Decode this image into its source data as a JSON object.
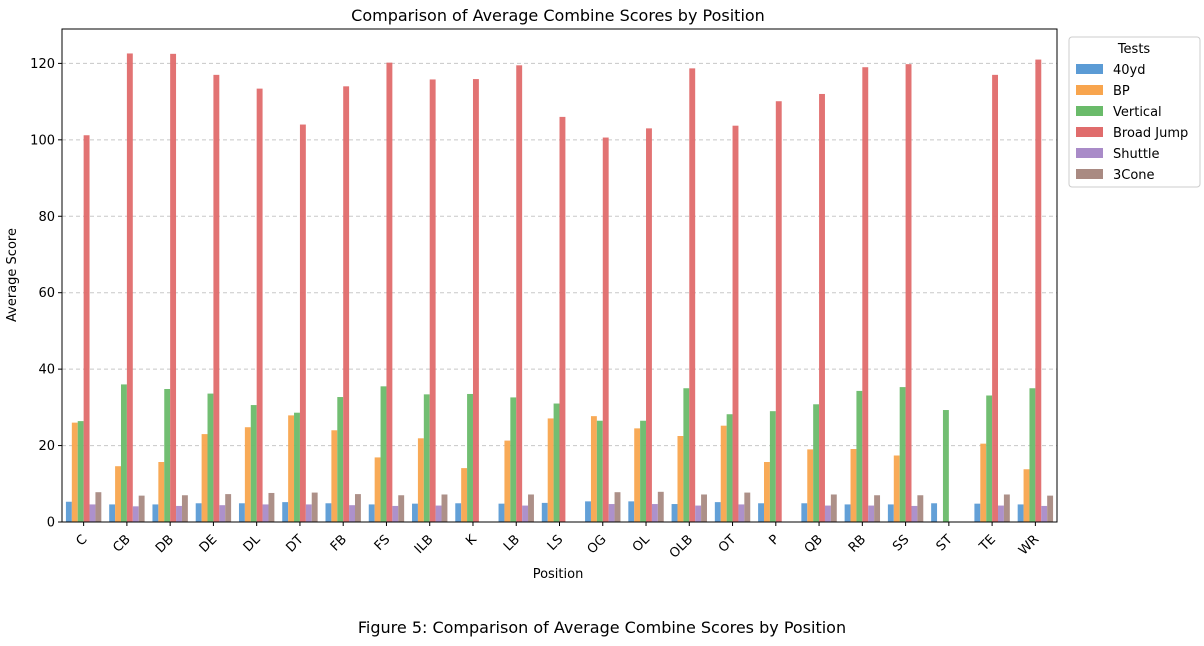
{
  "chart_data": {
    "type": "bar",
    "title": "Comparison of Average Combine Scores by Position",
    "xlabel": "Position",
    "ylabel": "Average Score",
    "caption": "Figure 5: Comparison of Average Combine Scores by Position",
    "ylim": [
      0,
      129
    ],
    "yticks": [
      0,
      20,
      40,
      60,
      80,
      100,
      120
    ],
    "grid": "y-dashed",
    "legend_title": "Tests",
    "legend_position": "outside-top-right",
    "categories": [
      "C",
      "CB",
      "DB",
      "DE",
      "DL",
      "DT",
      "FB",
      "FS",
      "ILB",
      "K",
      "LB",
      "LS",
      "OG",
      "OL",
      "OLB",
      "OT",
      "P",
      "QB",
      "RB",
      "SS",
      "ST",
      "TE",
      "WR"
    ],
    "series": [
      {
        "name": "40yd",
        "color": "#5b9bd5",
        "values": [
          5.3,
          4.6,
          4.6,
          4.9,
          4.9,
          5.2,
          4.9,
          4.6,
          4.8,
          4.9,
          4.8,
          5.0,
          5.4,
          5.4,
          4.7,
          5.2,
          4.9,
          4.9,
          4.6,
          4.6,
          4.9,
          4.8,
          4.6
        ]
      },
      {
        "name": "BP",
        "color": "#f8a54e",
        "values": [
          26.0,
          14.6,
          15.7,
          23.0,
          24.8,
          27.9,
          24.0,
          16.9,
          21.9,
          14.1,
          21.3,
          27.1,
          27.7,
          24.5,
          22.5,
          25.2,
          15.7,
          19.0,
          19.1,
          17.4,
          null,
          20.5,
          13.8
        ]
      },
      {
        "name": "Vertical",
        "color": "#6abb6a",
        "values": [
          26.4,
          36.0,
          34.8,
          33.6,
          30.6,
          28.6,
          32.7,
          35.5,
          33.4,
          33.5,
          32.6,
          31.0,
          26.5,
          26.5,
          35.0,
          28.2,
          29.0,
          30.8,
          34.3,
          35.3,
          29.3,
          33.1,
          35.0
        ]
      },
      {
        "name": "Broad Jump",
        "color": "#e06c6c",
        "values": [
          101.2,
          122.6,
          122.5,
          117.0,
          113.4,
          104.0,
          114.0,
          120.2,
          115.8,
          115.9,
          119.5,
          106.0,
          100.6,
          103.0,
          118.7,
          103.7,
          110.1,
          112.0,
          119.0,
          119.8,
          null,
          117.0,
          121.0
        ]
      },
      {
        "name": "Shuttle",
        "color": "#a98bc8",
        "values": [
          4.6,
          4.1,
          4.2,
          4.4,
          4.6,
          4.6,
          4.4,
          4.2,
          4.3,
          null,
          4.3,
          null,
          4.7,
          4.7,
          4.3,
          4.6,
          null,
          4.3,
          4.3,
          4.2,
          null,
          4.3,
          4.2
        ]
      },
      {
        "name": "3Cone",
        "color": "#a98a82",
        "values": [
          7.8,
          6.9,
          7.0,
          7.3,
          7.6,
          7.7,
          7.3,
          7.0,
          7.2,
          null,
          7.2,
          null,
          7.8,
          7.9,
          7.2,
          7.7,
          null,
          7.2,
          7.0,
          7.0,
          null,
          7.2,
          6.9
        ]
      }
    ]
  }
}
